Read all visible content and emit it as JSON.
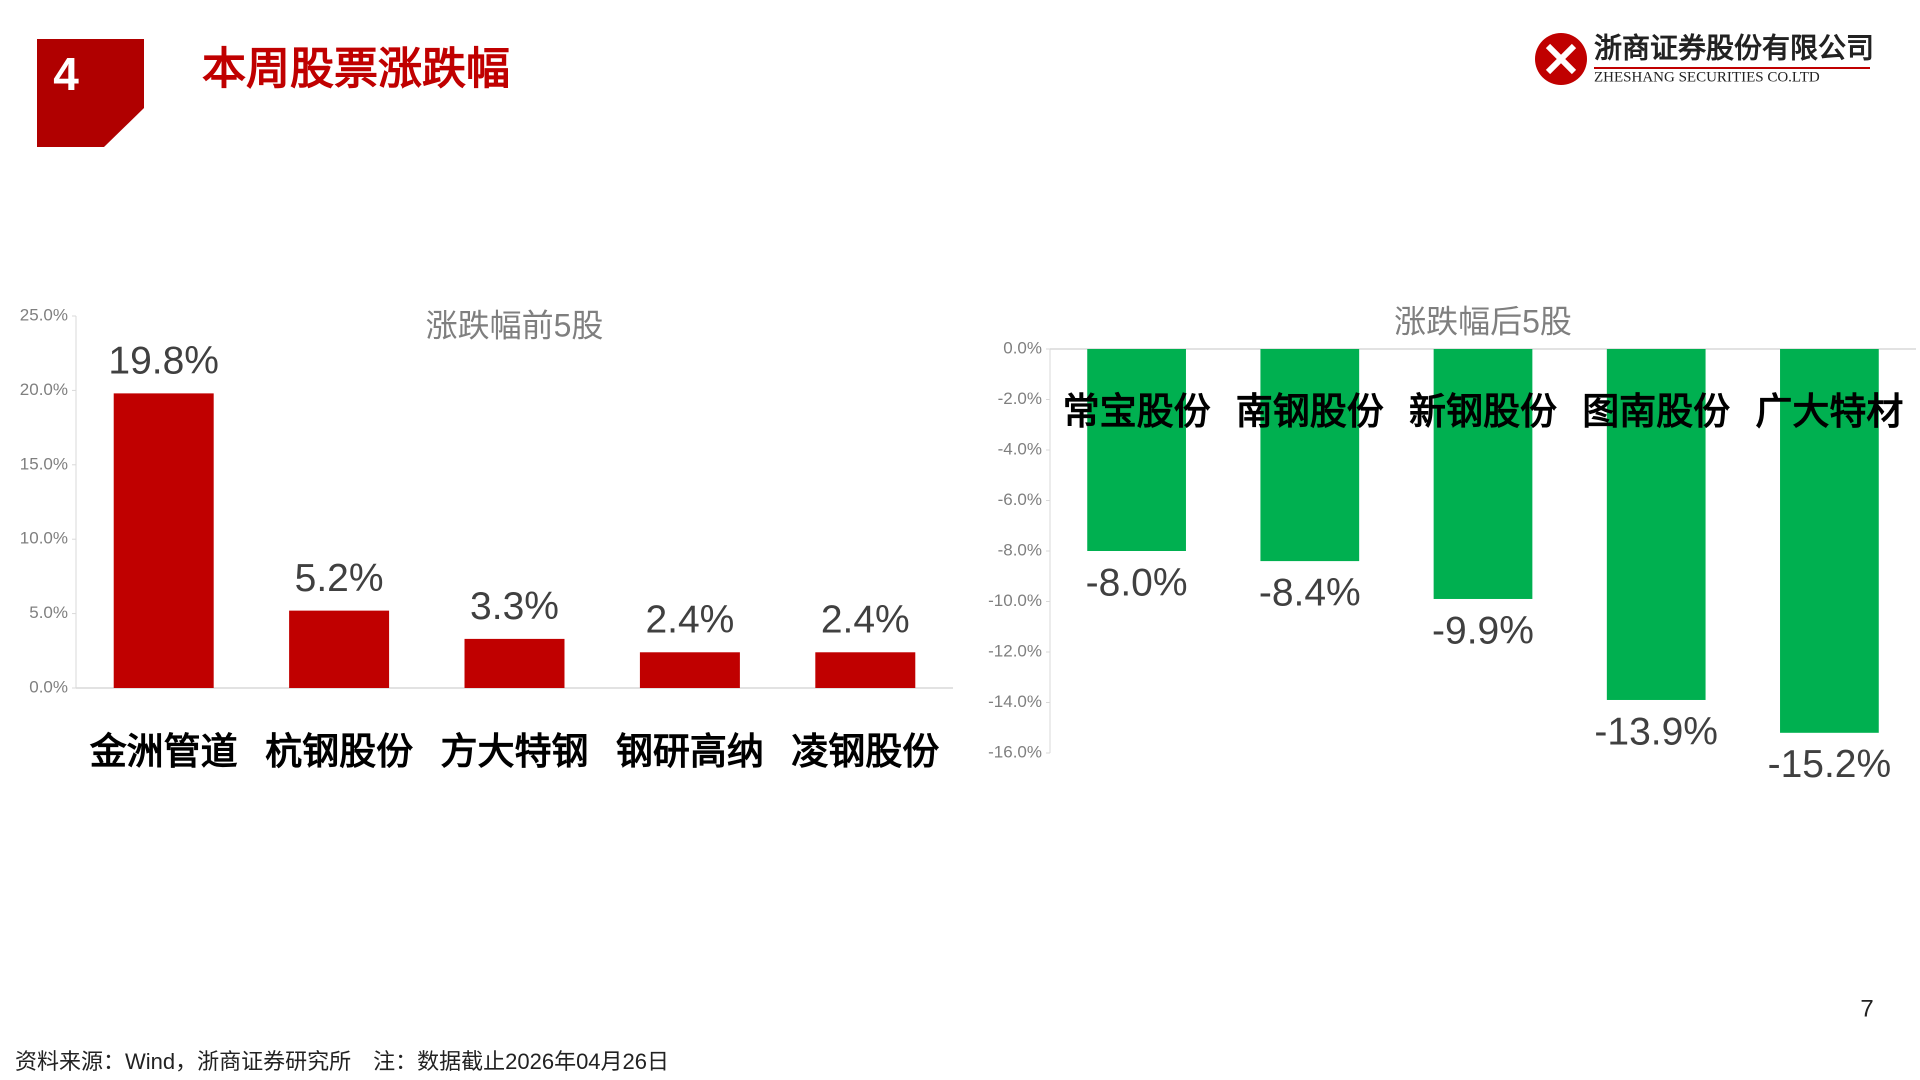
{
  "header": {
    "section_number": "4",
    "title": "本周股票涨跌幅",
    "company_cn": "浙商证券股份有限公司",
    "company_en": "ZHESHANG SECURITIES CO.LTD"
  },
  "chart_data": [
    {
      "type": "bar",
      "title": "涨跌幅前5股",
      "categories": [
        "金洲管道",
        "杭钢股份",
        "方大特钢",
        "钢研高纳",
        "凌钢股份"
      ],
      "values": [
        19.8,
        5.2,
        3.3,
        2.4,
        2.4
      ],
      "value_labels": [
        "19.8%",
        "5.2%",
        "3.3%",
        "2.4%",
        "2.4%"
      ],
      "color": "#c00000",
      "ylim": [
        0,
        25
      ],
      "yticks": [
        {
          "value": 0,
          "label": "0.0%"
        },
        {
          "value": 5,
          "label": "5.0%"
        },
        {
          "value": 10,
          "label": "10.0%"
        },
        {
          "value": 15,
          "label": "15.0%"
        },
        {
          "value": 20,
          "label": "20.0%"
        },
        {
          "value": 25,
          "label": "25.0%"
        }
      ]
    },
    {
      "type": "bar",
      "title": "涨跌幅后5股",
      "categories": [
        "常宝股份",
        "南钢股份",
        "新钢股份",
        "图南股份",
        "广大特材"
      ],
      "values": [
        -8.0,
        -8.4,
        -9.9,
        -13.9,
        -15.2
      ],
      "value_labels": [
        "-8.0%",
        "-8.4%",
        "-9.9%",
        "-13.9%",
        "-15.2%"
      ],
      "color": "#00b050",
      "ylim": [
        -16,
        0
      ],
      "yticks": [
        {
          "value": 0,
          "label": "0.0%"
        },
        {
          "value": -2,
          "label": "-2.0%"
        },
        {
          "value": -4,
          "label": "-4.0%"
        },
        {
          "value": -6,
          "label": "-6.0%"
        },
        {
          "value": -8,
          "label": "-8.0%"
        },
        {
          "value": -10,
          "label": "-10.0%"
        },
        {
          "value": -12,
          "label": "-12.0%"
        },
        {
          "value": -14,
          "label": "-14.0%"
        },
        {
          "value": -16,
          "label": "-16.0%"
        }
      ]
    }
  ],
  "footer": {
    "source": "资料来源：Wind，浙商证券研究所　注：数据截止2026年04月26日",
    "page_number": "7"
  }
}
